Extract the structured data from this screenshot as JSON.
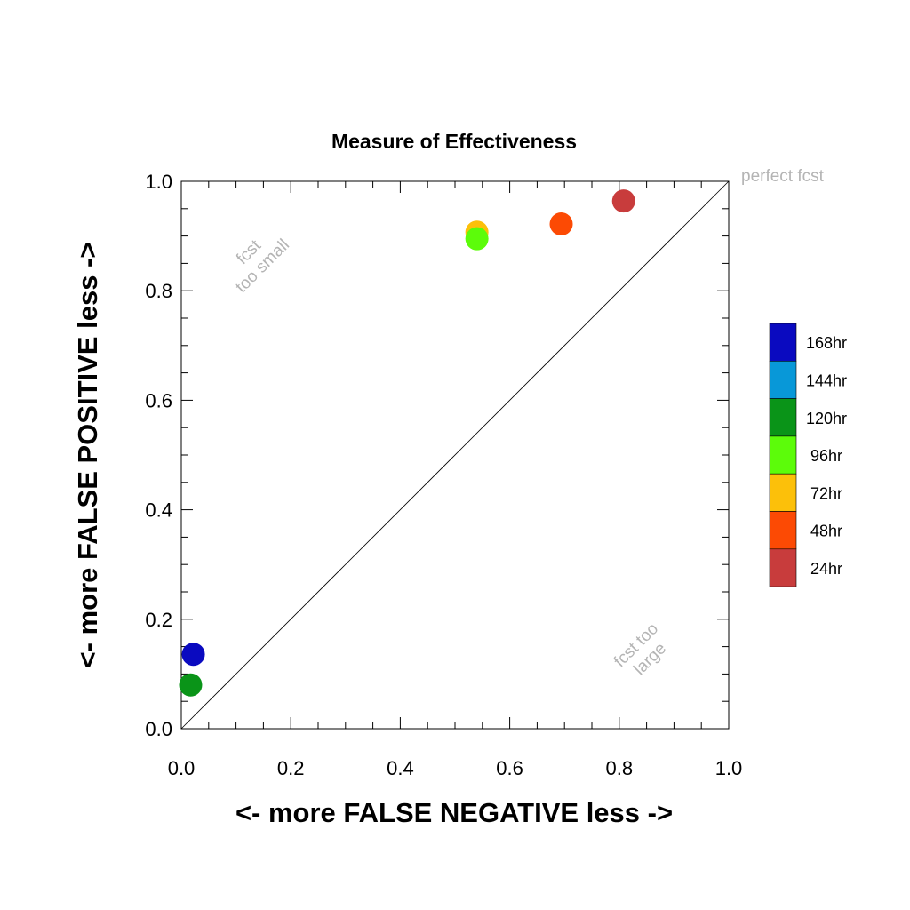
{
  "chart_data": {
    "type": "scatter",
    "title": "Measure of Effectiveness",
    "xlabel": "<- more   FALSE NEGATIVE   less ->",
    "ylabel": "<- more   FALSE POSITIVE   less ->",
    "xlim": [
      0.0,
      1.0
    ],
    "ylim": [
      0.0,
      1.0
    ],
    "x_ticks": [
      "0.0",
      "0.2",
      "0.4",
      "0.6",
      "0.8",
      "1.0"
    ],
    "y_ticks": [
      "0.0",
      "0.2",
      "0.4",
      "0.6",
      "0.8",
      "1.0"
    ],
    "grid": false,
    "diagonal_line": true,
    "annotations": {
      "top_left": [
        "fcst",
        "too small"
      ],
      "bottom_right": [
        "fcst too",
        "large"
      ],
      "top_right": "perfect fcst"
    },
    "legend_position": "right",
    "series": [
      {
        "name": "168hr",
        "color": "#0a0ac0",
        "x": 0.022,
        "y": 0.136
      },
      {
        "name": "144hr",
        "color": "#0898d8",
        "x": null,
        "y": null
      },
      {
        "name": "120hr",
        "color": "#0a9418",
        "x": 0.017,
        "y": 0.08
      },
      {
        "name": "96hr",
        "color": "#5cfc0a",
        "x": 0.54,
        "y": 0.895
      },
      {
        "name": "72hr",
        "color": "#fcc00a",
        "x": 0.54,
        "y": 0.907
      },
      {
        "name": "48hr",
        "color": "#fc4a04",
        "x": 0.694,
        "y": 0.922
      },
      {
        "name": "24hr",
        "color": "#c83c3c",
        "x": 0.808,
        "y": 0.964
      }
    ],
    "legend_order": [
      "168hr",
      "144hr",
      "120hr",
      "96hr",
      "72hr",
      "48hr",
      "24hr"
    ],
    "draw_order": [
      "120hr",
      "168hr",
      "72hr",
      "96hr",
      "48hr",
      "24hr"
    ]
  }
}
